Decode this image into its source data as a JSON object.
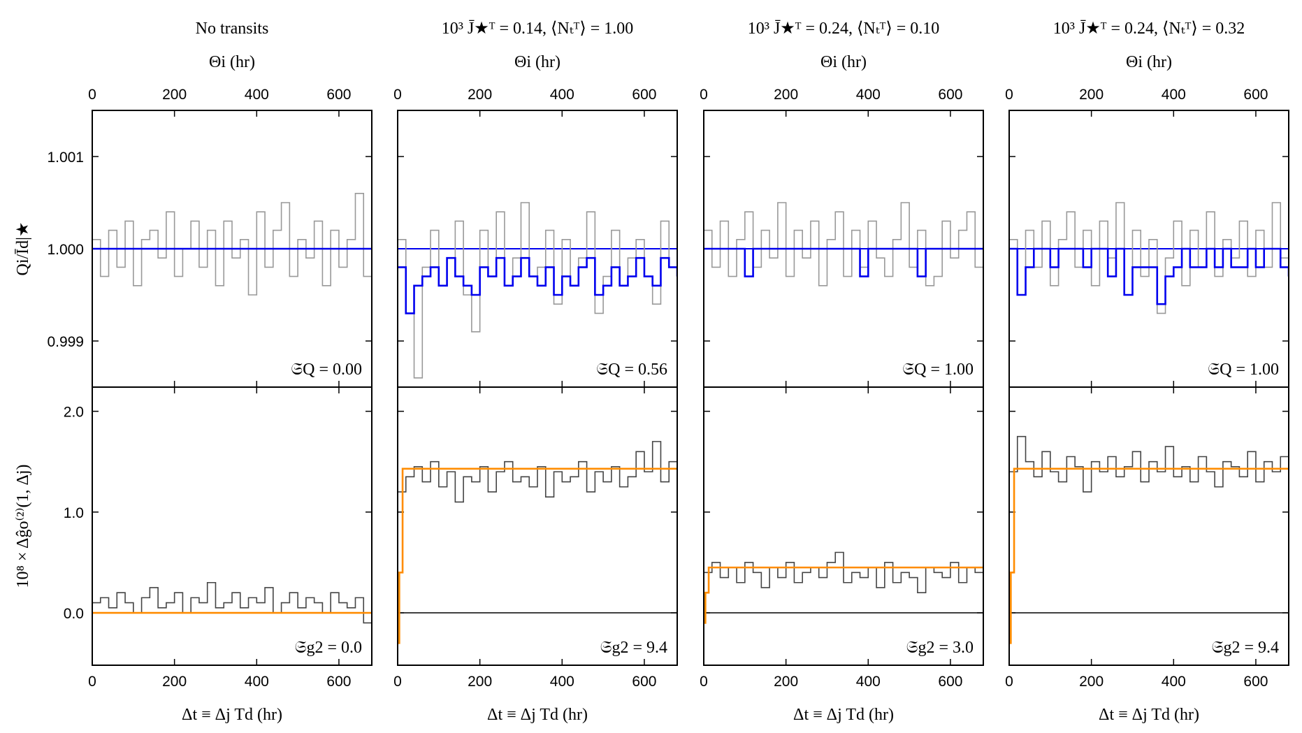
{
  "chart_data": [
    {
      "type": "step",
      "title": "No transits",
      "x_label": "Θi (hr)",
      "y_label": "Qi/Īd|★",
      "annotation": "𝔖Q = 0.00",
      "xlim": [
        0,
        680
      ],
      "xticks": [
        0,
        200,
        400,
        600
      ],
      "ylim": [
        0.9985,
        1.0015
      ],
      "yticks": [
        0.999,
        {
          "value": 1.0,
          "label": "1.000"
        },
        1.001
      ],
      "x": [
        0,
        20,
        40,
        60,
        80,
        100,
        120,
        140,
        160,
        180,
        200,
        220,
        240,
        260,
        280,
        300,
        320,
        340,
        360,
        380,
        400,
        420,
        440,
        460,
        480,
        500,
        520,
        540,
        560,
        580,
        600,
        620,
        640,
        660,
        680
      ],
      "series": [
        {
          "name": "data",
          "color": "#999999",
          "values": [
            1.0001,
            0.9997,
            1.0002,
            0.9998,
            1.0003,
            0.9996,
            1.0001,
            1.0002,
            0.9999,
            1.0004,
            0.9997,
            1.0,
            1.0003,
            0.9998,
            1.0002,
            0.9996,
            1.0003,
            0.9999,
            1.0001,
            0.9995,
            1.0004,
            0.9998,
            1.0002,
            1.0005,
            0.9997,
            1.0001,
            0.9999,
            1.0003,
            0.9996,
            1.0002,
            0.9998,
            1.0001,
            1.0006,
            0.9997,
            1.0003
          ]
        },
        {
          "name": "model",
          "color": "#0000ee",
          "x": [
            0,
            680
          ],
          "values": [
            1.0,
            1.0
          ]
        }
      ]
    },
    {
      "type": "step",
      "x_label": "Δt ≡ Δj Td (hr)",
      "y_label": "10⁸ × Δĝo⁽²⁾(1, Δj)",
      "annotation": "𝔖g2 = 0.0",
      "xlim": [
        0,
        680
      ],
      "xticks": [
        0,
        200,
        400,
        600
      ],
      "ylim": [
        -0.52,
        2.24
      ],
      "yticks": [
        {
          "value": 2.0,
          "label": "2.0"
        },
        {
          "value": 1.0,
          "label": "1.0"
        },
        {
          "value": 0.0,
          "label": "0.0"
        }
      ],
      "x": [
        0,
        20,
        40,
        60,
        80,
        100,
        120,
        140,
        160,
        180,
        200,
        220,
        240,
        260,
        280,
        300,
        320,
        340,
        360,
        380,
        400,
        420,
        440,
        460,
        480,
        500,
        520,
        540,
        560,
        580,
        600,
        620,
        640,
        660,
        680
      ],
      "series": [
        {
          "name": "data",
          "color": "#444444",
          "values": [
            0.1,
            0.15,
            0.05,
            0.2,
            0.1,
            0.0,
            0.15,
            0.25,
            0.05,
            0.1,
            0.2,
            0.0,
            0.15,
            0.1,
            0.3,
            0.05,
            0.1,
            0.2,
            0.05,
            0.15,
            0.1,
            0.25,
            0.0,
            0.1,
            0.2,
            0.05,
            0.15,
            0.1,
            0.0,
            0.2,
            0.1,
            0.05,
            0.15,
            -0.1,
            0.1
          ]
        },
        {
          "name": "model",
          "color": "#ff8c00",
          "x": [
            0,
            680
          ],
          "values": [
            0.0,
            0.0
          ]
        }
      ]
    },
    {
      "type": "step",
      "title": "10³ J̄★ᵀ = 0.14, ⟨Nₜᵀ⟩ = 1.00",
      "x_label": "Θi (hr)",
      "annotation": "𝔖Q = 0.56",
      "xlim": [
        0,
        680
      ],
      "xticks": [
        0,
        200,
        400,
        600
      ],
      "ylim": [
        0.9985,
        1.0015
      ],
      "reference_line": 1.0,
      "x": [
        0,
        20,
        40,
        60,
        80,
        100,
        120,
        140,
        160,
        180,
        200,
        220,
        240,
        260,
        280,
        300,
        320,
        340,
        360,
        380,
        400,
        420,
        440,
        460,
        480,
        500,
        520,
        540,
        560,
        580,
        600,
        620,
        640,
        660,
        680
      ],
      "series": [
        {
          "name": "data",
          "color": "#999999",
          "values": [
            1.0001,
            0.9993,
            0.9986,
            0.9998,
            1.0002,
            0.9996,
            0.9999,
            1.0003,
            0.9995,
            0.9991,
            1.0002,
            0.9997,
            1.0004,
            0.9996,
            0.9999,
            1.0005,
            0.9997,
            0.9998,
            1.0002,
            0.9994,
            1.0001,
            0.9996,
            0.9999,
            1.0004,
            0.9993,
            0.9997,
            1.0002,
            0.9996,
            0.9999,
            1.0001,
            0.9997,
            0.9994,
            1.0003,
            0.9998,
            0.9996
          ]
        },
        {
          "name": "model",
          "color": "#0000ee",
          "values": [
            0.9998,
            0.9993,
            0.9996,
            0.9997,
            0.9998,
            0.9996,
            0.9999,
            0.9997,
            0.9996,
            0.9995,
            0.9998,
            0.9997,
            0.9999,
            0.9996,
            0.9997,
            0.9999,
            0.9997,
            0.9996,
            0.9998,
            0.9995,
            0.9997,
            0.9996,
            0.9998,
            0.9999,
            0.9995,
            0.9996,
            0.9998,
            0.9996,
            0.9997,
            0.9999,
            0.9997,
            0.9996,
            0.9999,
            0.9998,
            0.9997
          ]
        }
      ]
    },
    {
      "type": "step",
      "x_label": "Δt ≡ Δj Td (hr)",
      "annotation": "𝔖g2 = 9.4",
      "xlim": [
        0,
        680
      ],
      "xticks": [
        0,
        200,
        400,
        600
      ],
      "ylim": [
        -0.52,
        2.24
      ],
      "reference_line": 0.0,
      "x": [
        0,
        20,
        40,
        60,
        80,
        100,
        120,
        140,
        160,
        180,
        200,
        220,
        240,
        260,
        280,
        300,
        320,
        340,
        360,
        380,
        400,
        420,
        440,
        460,
        480,
        500,
        520,
        540,
        560,
        580,
        600,
        620,
        640,
        660,
        680
      ],
      "series": [
        {
          "name": "data",
          "color": "#444444",
          "values": [
            1.2,
            1.35,
            1.45,
            1.3,
            1.5,
            1.25,
            1.4,
            1.1,
            1.35,
            1.3,
            1.45,
            1.2,
            1.4,
            1.5,
            1.3,
            1.35,
            1.25,
            1.45,
            1.15,
            1.4,
            1.3,
            1.35,
            1.5,
            1.2,
            1.4,
            1.3,
            1.45,
            1.25,
            1.35,
            1.6,
            1.4,
            1.7,
            1.3,
            1.5,
            1.1
          ]
        },
        {
          "name": "model",
          "color": "#ff8c00",
          "x": [
            0,
            4,
            12,
            680
          ],
          "values": [
            -0.3,
            0.4,
            1.43,
            1.43
          ]
        }
      ]
    },
    {
      "type": "step",
      "title": "10³ J̄★ᵀ = 0.24, ⟨Nₜᵀ⟩ = 0.10",
      "x_label": "Θi (hr)",
      "annotation": "𝔖Q = 1.00",
      "xlim": [
        0,
        680
      ],
      "xticks": [
        0,
        200,
        400,
        600
      ],
      "ylim": [
        0.9985,
        1.0015
      ],
      "reference_line": 1.0,
      "x": [
        0,
        20,
        40,
        60,
        80,
        100,
        120,
        140,
        160,
        180,
        200,
        220,
        240,
        260,
        280,
        300,
        320,
        340,
        360,
        380,
        400,
        420,
        440,
        460,
        480,
        500,
        520,
        540,
        560,
        580,
        600,
        620,
        640,
        660,
        680
      ],
      "series": [
        {
          "name": "data",
          "color": "#999999",
          "values": [
            1.0002,
            0.9998,
            1.0003,
            0.9997,
            1.0001,
            1.0004,
            0.9998,
            1.0002,
            0.9999,
            1.0005,
            0.9997,
            1.0002,
            0.9999,
            1.0003,
            0.9996,
            1.0001,
            1.0004,
            0.9997,
            1.0002,
            0.9998,
            1.0003,
            0.9999,
            0.9997,
            1.0001,
            1.0005,
            0.9998,
            1.0002,
            0.9996,
            0.9997,
            1.0003,
            0.9999,
            1.0002,
            1.0004,
            0.9998,
            1.0001
          ]
        },
        {
          "name": "model",
          "color": "#0000ee",
          "values": [
            1.0,
            1.0,
            1.0,
            1.0,
            1.0,
            0.9997,
            1.0,
            1.0,
            1.0,
            1.0,
            1.0,
            1.0,
            1.0,
            1.0,
            1.0,
            1.0,
            1.0,
            1.0,
            1.0,
            0.9997,
            1.0,
            1.0,
            1.0,
            1.0,
            1.0,
            1.0,
            0.9997,
            1.0,
            1.0,
            1.0,
            1.0,
            1.0,
            1.0,
            1.0,
            1.0
          ]
        }
      ]
    },
    {
      "type": "step",
      "x_label": "Δt ≡ Δj Td (hr)",
      "annotation": "𝔖g2 = 3.0",
      "xlim": [
        0,
        680
      ],
      "xticks": [
        0,
        200,
        400,
        600
      ],
      "ylim": [
        -0.52,
        2.24
      ],
      "reference_line": 0.0,
      "x": [
        0,
        20,
        40,
        60,
        80,
        100,
        120,
        140,
        160,
        180,
        200,
        220,
        240,
        260,
        280,
        300,
        320,
        340,
        360,
        380,
        400,
        420,
        440,
        460,
        480,
        500,
        520,
        540,
        560,
        580,
        600,
        620,
        640,
        660,
        680
      ],
      "series": [
        {
          "name": "data",
          "color": "#444444",
          "values": [
            0.4,
            0.5,
            0.35,
            0.45,
            0.3,
            0.5,
            0.4,
            0.25,
            0.45,
            0.35,
            0.5,
            0.3,
            0.4,
            0.45,
            0.35,
            0.5,
            0.6,
            0.3,
            0.4,
            0.35,
            0.45,
            0.25,
            0.5,
            0.3,
            0.4,
            0.35,
            0.2,
            0.45,
            0.4,
            0.35,
            0.5,
            0.3,
            0.45,
            0.4,
            0.5
          ]
        },
        {
          "name": "model",
          "color": "#ff8c00",
          "x": [
            0,
            4,
            12,
            680
          ],
          "values": [
            -0.1,
            0.2,
            0.45,
            0.45
          ]
        }
      ]
    },
    {
      "type": "step",
      "title": "10³ J̄★ᵀ = 0.24, ⟨Nₜᵀ⟩ = 0.32",
      "x_label": "Θi (hr)",
      "annotation": "𝔖Q = 1.00",
      "xlim": [
        0,
        680
      ],
      "xticks": [
        0,
        200,
        400,
        600
      ],
      "ylim": [
        0.9985,
        1.0015
      ],
      "reference_line": 1.0,
      "x": [
        0,
        20,
        40,
        60,
        80,
        100,
        120,
        140,
        160,
        180,
        200,
        220,
        240,
        260,
        280,
        300,
        320,
        340,
        360,
        380,
        400,
        420,
        440,
        460,
        480,
        500,
        520,
        540,
        560,
        580,
        600,
        620,
        640,
        660,
        680
      ],
      "series": [
        {
          "name": "data",
          "color": "#999999",
          "values": [
            1.0001,
            0.9995,
            1.0002,
            0.9998,
            1.0003,
            0.9996,
            1.0001,
            1.0004,
            0.9998,
            1.0002,
            0.9996,
            1.0003,
            0.9999,
            1.0005,
            0.9995,
            1.0002,
            0.9997,
            1.0001,
            0.9993,
            0.9999,
            1.0003,
            0.9996,
            1.0002,
            0.9998,
            1.0004,
            0.9997,
            1.0001,
            0.9999,
            1.0003,
            0.9997,
            1.0002,
            0.9998,
            1.0005,
            0.9999,
            1.0002
          ]
        },
        {
          "name": "model",
          "color": "#0000ee",
          "values": [
            1.0,
            0.9995,
            0.9998,
            1.0,
            1.0,
            0.9998,
            1.0,
            1.0,
            1.0,
            0.9998,
            1.0,
            1.0,
            0.9997,
            1.0,
            0.9995,
            0.9998,
            0.9998,
            0.9998,
            0.9994,
            0.9997,
            0.9998,
            1.0,
            0.9998,
            0.9998,
            1.0,
            0.9998,
            1.0,
            0.9998,
            0.9998,
            1.0,
            0.9998,
            1.0,
            1.0,
            0.9998,
            0.9997
          ]
        }
      ]
    },
    {
      "type": "step",
      "x_label": "Δt ≡ Δj Td (hr)",
      "annotation": "𝔖g2 = 9.4",
      "xlim": [
        0,
        680
      ],
      "xticks": [
        0,
        200,
        400,
        600
      ],
      "ylim": [
        -0.52,
        2.24
      ],
      "reference_line": 0.0,
      "x": [
        0,
        20,
        40,
        60,
        80,
        100,
        120,
        140,
        160,
        180,
        200,
        220,
        240,
        260,
        280,
        300,
        320,
        340,
        360,
        380,
        400,
        420,
        440,
        460,
        480,
        500,
        520,
        540,
        560,
        580,
        600,
        620,
        640,
        660,
        680
      ],
      "series": [
        {
          "name": "data",
          "color": "#444444",
          "values": [
            1.4,
            1.75,
            1.5,
            1.35,
            1.6,
            1.4,
            1.3,
            1.55,
            1.45,
            1.2,
            1.5,
            1.4,
            1.55,
            1.35,
            1.45,
            1.6,
            1.3,
            1.5,
            1.4,
            1.65,
            1.35,
            1.45,
            1.3,
            1.55,
            1.4,
            1.25,
            1.5,
            1.45,
            1.35,
            1.6,
            1.3,
            1.5,
            1.4,
            1.55,
            1.3
          ]
        },
        {
          "name": "model",
          "color": "#ff8c00",
          "x": [
            0,
            4,
            12,
            680
          ],
          "values": [
            -0.3,
            0.4,
            1.43,
            1.43
          ]
        }
      ]
    }
  ]
}
